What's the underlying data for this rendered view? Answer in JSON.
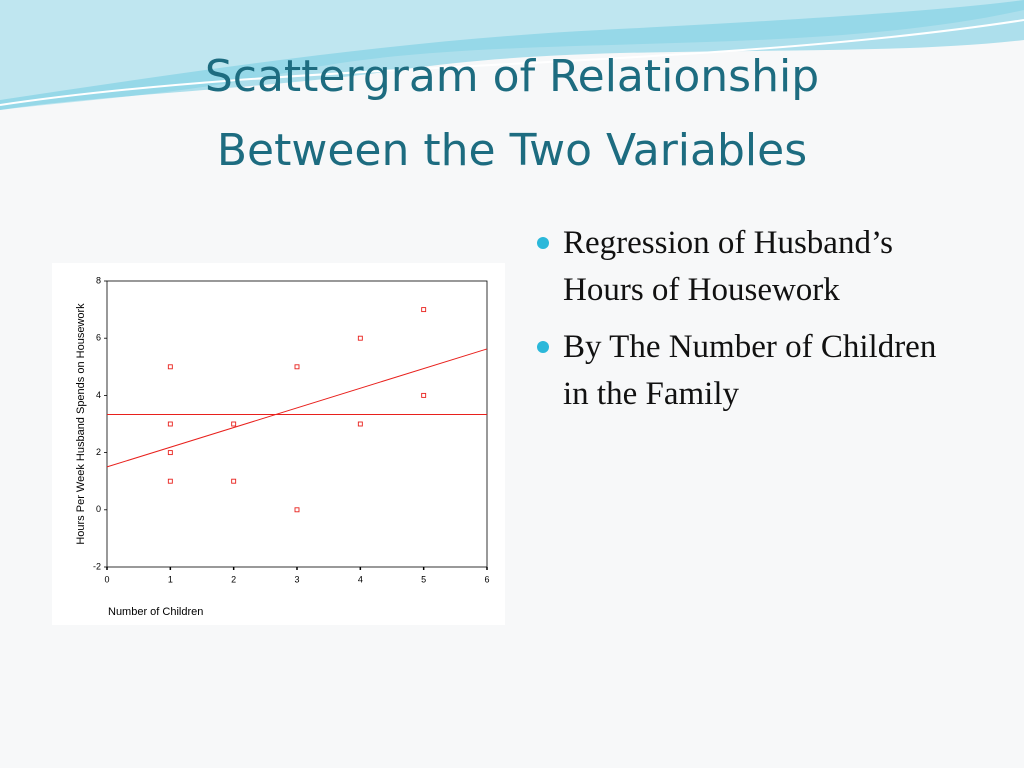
{
  "slide": {
    "title": [
      "Scattergram of Relationship",
      "Between the Two Variables"
    ],
    "bullets": [
      "Regression of Husband’s Hours of Housework",
      "By The Number of Children in the Family"
    ]
  },
  "chart_data": {
    "type": "scatter",
    "x_label": "Number of Children",
    "y_label": "Hours Per Week Husband Spends on Housework",
    "series": [
      {
        "color": "#e8201c",
        "x": [
          1,
          1,
          1,
          1,
          2,
          2,
          3,
          3,
          4,
          4,
          5,
          5
        ],
        "values": [
          5,
          3,
          2,
          1,
          3,
          1,
          5,
          0,
          6,
          3,
          7,
          4
        ]
      }
    ],
    "mean_line": 3.33,
    "regression": {
      "intercept": 1.5,
      "slope": 0.6875
    },
    "xlim": [
      0,
      6
    ],
    "xticks": [
      0,
      1,
      2,
      3,
      4,
      5,
      6
    ],
    "ylim": [
      -2,
      8
    ],
    "yticks": [
      -2,
      0,
      2,
      4,
      6,
      8
    ]
  }
}
